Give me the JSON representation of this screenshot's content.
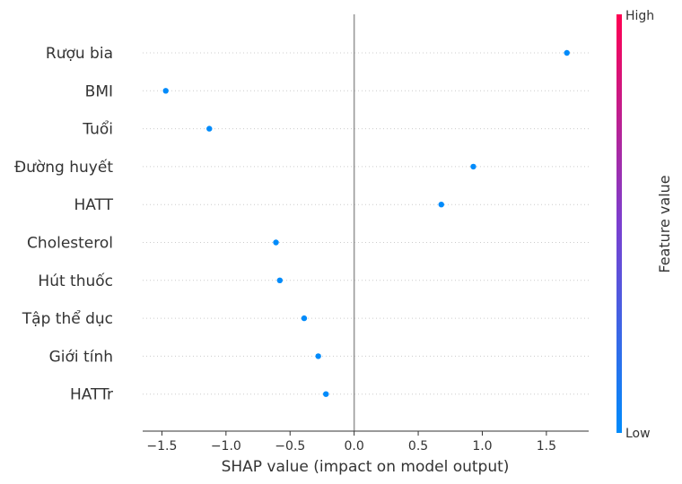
{
  "chart_data": {
    "type": "scatter",
    "title": "",
    "xlabel": "SHAP value (impact on model output)",
    "ylabel": "",
    "xlim": [
      -1.65,
      1.83
    ],
    "xticks": [
      -1.5,
      -1.0,
      -0.5,
      0.0,
      0.5,
      1.0,
      1.5
    ],
    "xtick_labels": [
      "−1.5",
      "−1.0",
      "−0.5",
      "0.0",
      "0.5",
      "1.0",
      "1.5"
    ],
    "grid": false,
    "features": [
      "Rượu bia",
      "BMI",
      "Tuổi",
      "Đường huyết",
      "HATT",
      "Cholesterol",
      "Hút thuốc",
      "Tập thể dục",
      "Giới tính",
      "HATTr"
    ],
    "points": [
      {
        "feature": "Rượu bia",
        "x": 1.66,
        "color": "#008bfb"
      },
      {
        "feature": "BMI",
        "x": -1.47,
        "color": "#008bfb"
      },
      {
        "feature": "Tuổi",
        "x": -1.13,
        "color": "#008bfb"
      },
      {
        "feature": "Đường huyết",
        "x": 0.93,
        "color": "#008bfb"
      },
      {
        "feature": "HATT",
        "x": 0.68,
        "color": "#008bfb"
      },
      {
        "feature": "Cholesterol",
        "x": -0.61,
        "color": "#008bfb"
      },
      {
        "feature": "Hút thuốc",
        "x": -0.58,
        "color": "#008bfb"
      },
      {
        "feature": "Tập thể dục",
        "x": -0.39,
        "color": "#008bfb"
      },
      {
        "feature": "Giới tính",
        "x": -0.28,
        "color": "#008bfb"
      },
      {
        "feature": "HATTr",
        "x": -0.22,
        "color": "#008bfb"
      }
    ],
    "colorbar": {
      "label": "Feature value",
      "high_label": "High",
      "low_label": "Low",
      "low_color": "#008bfb",
      "high_color": "#ff0052"
    },
    "colors": {
      "zero_line": "#999999",
      "axis": "#333333",
      "row_guide": "#cccccc"
    }
  }
}
